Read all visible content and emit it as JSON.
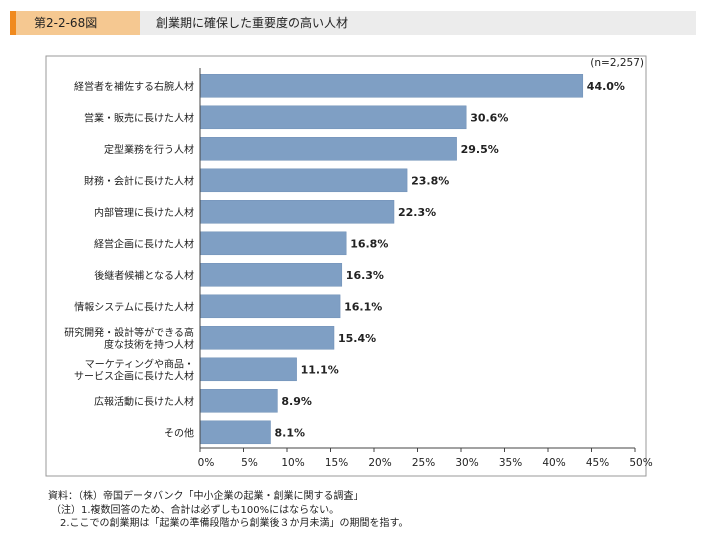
{
  "header": {
    "figure_number": "第2-2-68図",
    "title": "創業期に確保した重要度の高い人材"
  },
  "chart_data": {
    "type": "bar",
    "orientation": "horizontal",
    "title": "創業期に確保した重要度の高い人材",
    "n_label": "(n=2,257)",
    "categories": [
      [
        "経営者を補佐する右腕人材"
      ],
      [
        "営業・販売に長けた人材"
      ],
      [
        "定型業務を行う人材"
      ],
      [
        "財務・会計に長けた人材"
      ],
      [
        "内部管理に長けた人材"
      ],
      [
        "経営企画に長けた人材"
      ],
      [
        "後継者候補となる人材"
      ],
      [
        "情報システムに長けた人材"
      ],
      [
        "研究開発・設計等ができる高",
        "度な技術を持つ人材"
      ],
      [
        "マーケティングや商品・",
        "サービス企画に長けた人材"
      ],
      [
        "広報活動に長けた人材"
      ],
      [
        "その他"
      ]
    ],
    "values": [
      44.0,
      30.6,
      29.5,
      23.8,
      22.3,
      16.8,
      16.3,
      16.1,
      15.4,
      11.1,
      8.9,
      8.1
    ],
    "value_labels": [
      "44.0%",
      "30.6%",
      "29.5%",
      "23.8%",
      "22.3%",
      "16.8%",
      "16.3%",
      "16.1%",
      "15.4%",
      "11.1%",
      "8.9%",
      "8.1%"
    ],
    "xlim": [
      0,
      50
    ],
    "xticks": [
      "0%",
      "5%",
      "10%",
      "15%",
      "20%",
      "25%",
      "30%",
      "35%",
      "40%",
      "45%",
      "50%"
    ],
    "bar_color": "#7f9fc4",
    "grid": false
  },
  "notes": [
    "資料：（株）帝国データバンク「中小企業の起業・創業に関する調査」",
    "（注）1.複数回答のため、合計は必ずしも100%にはならない。",
    "2.ここでの創業期は「起業の準備段階から創業後３か月未満」の期間を指す。"
  ]
}
